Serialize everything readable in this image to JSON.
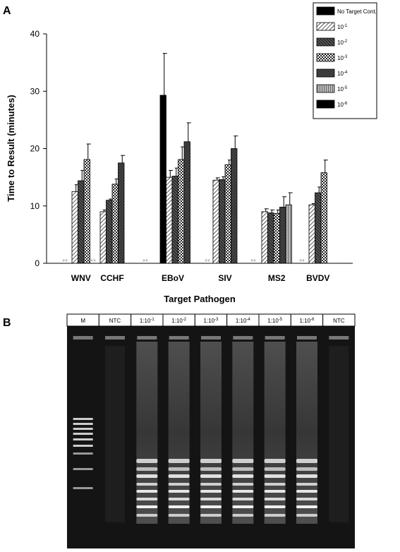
{
  "panel_a_letter": "A",
  "panel_b_letter": "B",
  "chart_data": {
    "type": "bar",
    "xlabel": "Target Pathogen",
    "ylabel": "Time to Result (minutes)",
    "ylim": [
      0,
      40
    ],
    "yticks": [
      0,
      10,
      20,
      30,
      40
    ],
    "grid": false,
    "legend_position": "top-right",
    "categories": [
      "WNV",
      "CCHF",
      "EBoV",
      "SIV",
      "MS2",
      "BVDV"
    ],
    "below_detection_marker": "**",
    "below_detection_categories": [
      "WNV",
      "CCHF",
      "EBoV",
      "SIV",
      "MS2",
      "BVDV"
    ],
    "series": [
      {
        "name": "No Target Cont.",
        "fill": "solid-black",
        "values": [
          null,
          null,
          29.3,
          null,
          null,
          null
        ],
        "errors": [
          null,
          null,
          7.3,
          null,
          null,
          null
        ]
      },
      {
        "name": "10-1",
        "fill": "diag-light",
        "values": [
          12.5,
          9.0,
          15.0,
          14.5,
          9.0,
          10.2
        ],
        "errors": [
          1.2,
          0.3,
          1.2,
          0.4,
          0.5,
          0.2
        ]
      },
      {
        "name": "10-2",
        "fill": "diag-dark",
        "values": [
          14.4,
          11.0,
          15.2,
          14.6,
          8.8,
          12.3
        ],
        "errors": [
          1.8,
          0.2,
          1.4,
          0.5,
          0.5,
          1.0
        ]
      },
      {
        "name": "10-3",
        "fill": "checker",
        "values": [
          18.1,
          13.8,
          18.1,
          17.2,
          8.7,
          15.8
        ],
        "errors": [
          2.7,
          0.9,
          2.2,
          0.8,
          0.6,
          2.2
        ]
      },
      {
        "name": "10-4",
        "fill": "dense-diag",
        "values": [
          null,
          17.5,
          21.2,
          20.0,
          9.8,
          null
        ],
        "errors": [
          null,
          1.3,
          3.3,
          2.2,
          1.8,
          null
        ]
      },
      {
        "name": "10-5",
        "fill": "vertical-gray",
        "values": [
          null,
          null,
          null,
          null,
          10.2,
          null
        ],
        "errors": [
          null,
          null,
          null,
          null,
          2.1,
          null
        ]
      },
      {
        "name": "10-6",
        "fill": "solid-black",
        "values": [
          null,
          null,
          null,
          null,
          null,
          null
        ],
        "errors": [
          null,
          null,
          null,
          null,
          null,
          null
        ]
      }
    ]
  },
  "gel": {
    "lanes": [
      "M",
      "NTC",
      "1:10-1",
      "1:10-2",
      "1:10-3",
      "1:10-4",
      "1:10-5",
      "1:10-6",
      "NTC"
    ]
  }
}
